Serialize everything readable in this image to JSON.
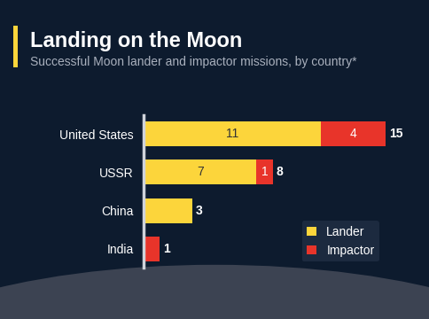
{
  "chart_data": {
    "type": "bar",
    "orientation": "horizontal",
    "stacked": true,
    "title": "Landing on the Moon",
    "subtitle": "Successful Moon lander and impactor missions, by country*",
    "categories": [
      "United States",
      "USSR",
      "China",
      "India"
    ],
    "series": [
      {
        "name": "Lander",
        "color": "#fcd53b",
        "values": [
          11,
          7,
          3,
          0
        ],
        "value_labels": [
          "11",
          "7",
          null,
          null
        ]
      },
      {
        "name": "Impactor",
        "color": "#e8342a",
        "values": [
          4,
          1,
          0,
          1
        ],
        "value_labels": [
          "4",
          "1",
          null,
          null
        ]
      }
    ],
    "totals": [
      15,
      8,
      3,
      1
    ],
    "data_labels": true,
    "tick_labels": "y",
    "legend": "lower right",
    "grid": false
  }
}
